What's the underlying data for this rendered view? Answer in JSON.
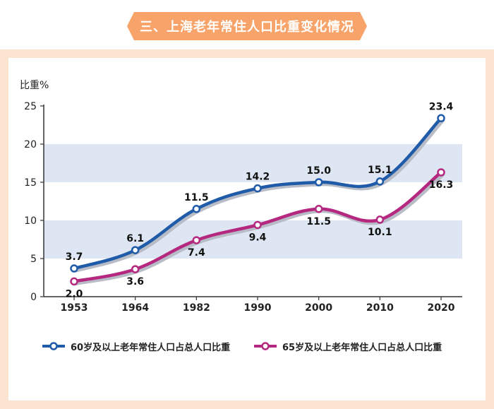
{
  "header": {
    "title": "三、上海老年常住人口比重变化情况"
  },
  "colors": {
    "series1": "#1f5ba8",
    "series2": "#b5287f",
    "band": "#dde6f2",
    "frame": "#fbe4cf",
    "banner": "#f7a36a"
  },
  "chart_data": {
    "type": "line",
    "title": "",
    "ylabel": "比重%",
    "xlabel": "",
    "categories": [
      "1953",
      "1964",
      "1982",
      "1990",
      "2000",
      "2010",
      "2020"
    ],
    "ylim": [
      0,
      25
    ],
    "yticks": [
      0,
      5,
      10,
      15,
      20,
      25
    ],
    "series": [
      {
        "name": "60岁及以上老年常住人口占总人口比重",
        "values": [
          3.7,
          6.1,
          11.5,
          14.2,
          15.0,
          15.1,
          23.4
        ],
        "labels": [
          "3.7",
          "6.1",
          "11.5",
          "14.2",
          "15.0",
          "15.1",
          "23.4"
        ]
      },
      {
        "name": "65岁及以上老年常住人口占总人口比重",
        "values": [
          2.0,
          3.6,
          7.4,
          9.4,
          11.5,
          10.1,
          16.3
        ],
        "labels": [
          "2.0",
          "3.6",
          "7.4",
          "9.4",
          "11.5",
          "10.1",
          "16.3"
        ]
      }
    ]
  }
}
